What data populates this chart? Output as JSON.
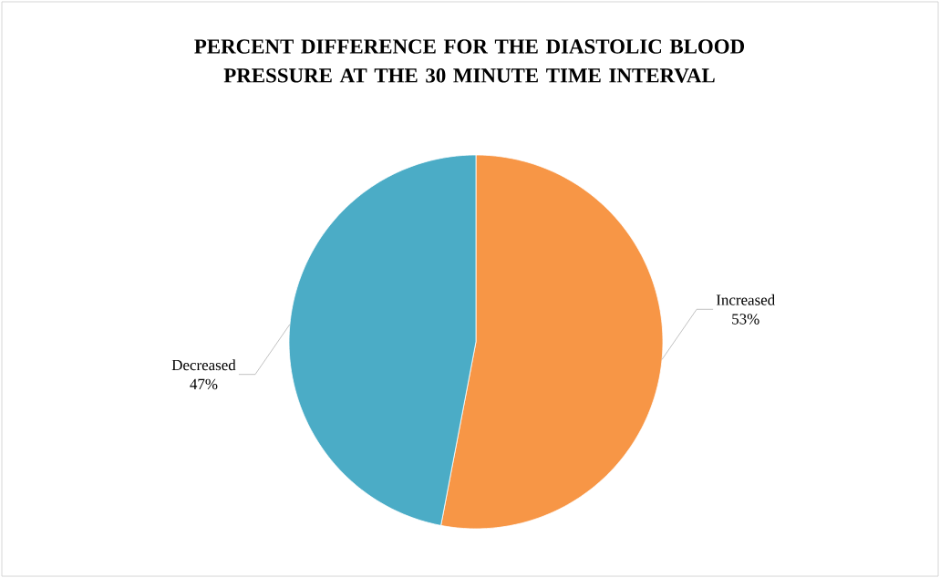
{
  "chart_data": {
    "type": "pie",
    "title": "PERCENT DIFFERENCE FOR THE DIASTOLIC BLOOD PRESSURE AT THE 30 MINUTE TIME INTERVAL",
    "categories": [
      "Increased",
      "Decreased"
    ],
    "values": [
      53,
      47
    ],
    "value_labels": [
      "53%",
      "47%"
    ],
    "colors": [
      "#f79646",
      "#4bacc6"
    ]
  }
}
